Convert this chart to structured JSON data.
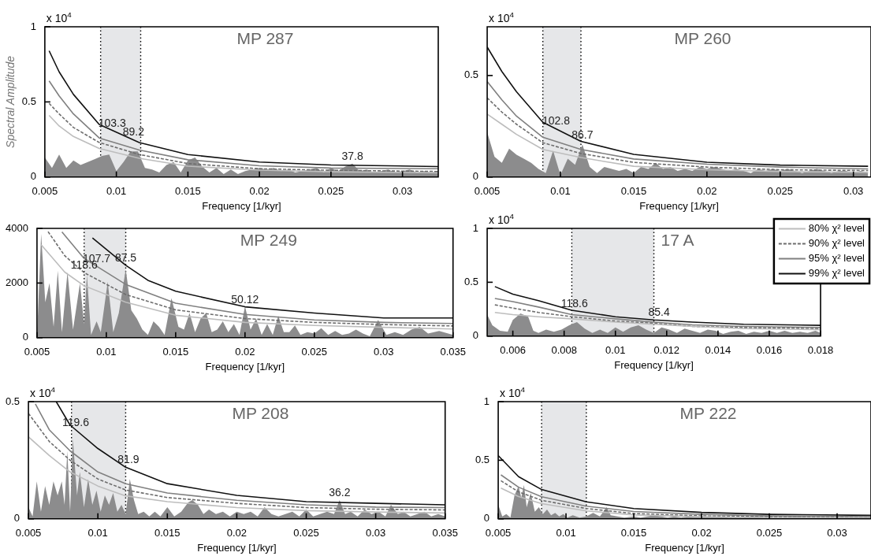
{
  "chart_data": [
    {
      "type": "line",
      "title": "MP 287",
      "xlabel": "Frequency [1/kyr]",
      "ylabel": "Spectral Amplitude",
      "annotations": [
        "x 10$^{4}$",
        {
          "text": "103.3",
          "x": 0.0097,
          "y": 0.31
        },
        {
          "text": "89.2",
          "x": 0.0112,
          "y": 0.25
        },
        {
          "text": "37.8",
          "x": 0.0265,
          "y": 0.09
        }
      ],
      "ref_lines": [
        {
          "axis": "x",
          "value": 0.0089,
          "line_style": "dotted",
          "color": "#000000"
        },
        {
          "axis": "x",
          "value": 0.0117,
          "line_style": "dotted",
          "color": "#000000"
        }
      ],
      "xlim": [
        0.005,
        0.0325
      ],
      "xticks": [
        0.005,
        0.01,
        0.015,
        0.02,
        0.025,
        0.03
      ],
      "ylim": [
        0,
        1
      ],
      "yticks": [
        0,
        0.5,
        1
      ],
      "bands": [
        {
          "axis": "x",
          "from": 0.0089,
          "to": 0.0117,
          "color": "#e6e7e9"
        }
      ],
      "series": [
        {
          "type": "area",
          "color": "#8c8c8d",
          "x": [
            0.005,
            0.0055,
            0.006,
            0.0065,
            0.007,
            0.0075,
            0.008,
            0.0085,
            0.009,
            0.0095,
            0.01,
            0.0105,
            0.011,
            0.0115,
            0.012,
            0.0125,
            0.013,
            0.0135,
            0.014,
            0.0145,
            0.015,
            0.0155,
            0.016,
            0.0165,
            0.017,
            0.0175,
            0.018,
            0.0185,
            0.019,
            0.0195,
            0.02,
            0.0205,
            0.021,
            0.0215,
            0.022,
            0.0225,
            0.023,
            0.0235,
            0.024,
            0.0245,
            0.025,
            0.0255,
            0.026,
            0.0265,
            0.027,
            0.0275,
            0.028,
            0.0285,
            0.029,
            0.0295,
            0.03,
            0.0305,
            0.031,
            0.0315,
            0.032,
            0.0325
          ],
          "values": [
            0.13,
            0.06,
            0.15,
            0.06,
            0.11,
            0.08,
            0.1,
            0.12,
            0.14,
            0.15,
            0.04,
            0.1,
            0.17,
            0.17,
            0.06,
            0.05,
            0.03,
            0.08,
            0.1,
            0.03,
            0.11,
            0.13,
            0.07,
            0.03,
            0.06,
            0.02,
            0.05,
            0.02,
            0.04,
            0.05,
            0.06,
            0.05,
            0.06,
            0.04,
            0.05,
            0.03,
            0.04,
            0.05,
            0.06,
            0.03,
            0.06,
            0.04,
            0.07,
            0.09,
            0.04,
            0.05,
            0.03,
            0.04,
            0.05,
            0.03,
            0.04,
            0.05,
            0.03,
            0.04,
            0.03,
            0.04
          ]
        },
        {
          "color": "#bdbdbd",
          "x": [
            0.0053,
            0.006,
            0.007,
            0.0088,
            0.0116,
            0.015,
            0.02,
            0.025,
            0.0325
          ],
          "values": [
            0.41,
            0.34,
            0.27,
            0.19,
            0.125,
            0.072,
            0.046,
            0.035,
            0.028
          ]
        },
        {
          "color": "#6d6d6d",
          "line_style": "dashed",
          "x": [
            0.0053,
            0.006,
            0.007,
            0.0088,
            0.0116,
            0.015,
            0.02,
            0.025,
            0.0325
          ],
          "values": [
            0.49,
            0.42,
            0.33,
            0.23,
            0.15,
            0.09,
            0.055,
            0.045,
            0.037
          ]
        },
        {
          "color": "#808080",
          "x": [
            0.0053,
            0.006,
            0.007,
            0.0088,
            0.0116,
            0.015,
            0.02,
            0.025,
            0.0325
          ],
          "values": [
            0.64,
            0.54,
            0.42,
            0.26,
            0.18,
            0.115,
            0.075,
            0.06,
            0.055
          ]
        },
        {
          "color": "#111111",
          "x": [
            0.0053,
            0.006,
            0.007,
            0.0088,
            0.0116,
            0.015,
            0.02,
            0.025,
            0.0325
          ],
          "values": [
            0.84,
            0.7,
            0.55,
            0.35,
            0.23,
            0.15,
            0.1,
            0.08,
            0.07
          ]
        }
      ]
    },
    {
      "type": "line",
      "title": "MP 260",
      "xlabel": "Frequency [1/kyr]",
      "annotations": [
        "x 10$^{4}$",
        {
          "text": "102.8",
          "x": 0.0097,
          "y": 0.24
        },
        {
          "text": "86.7",
          "x": 0.0115,
          "y": 0.17
        }
      ],
      "ref_lines": [
        {
          "axis": "x",
          "value": 0.0088,
          "line_style": "dotted",
          "color": "#000000"
        },
        {
          "axis": "x",
          "value": 0.0114,
          "line_style": "dotted",
          "color": "#000000"
        }
      ],
      "xlim": [
        0.005,
        0.0312
      ],
      "xticks": [
        0.005,
        0.01,
        0.015,
        0.02,
        0.025,
        0.03
      ],
      "ylim": [
        0,
        0.74
      ],
      "yticks": [
        0,
        0.5
      ],
      "bands": [
        {
          "axis": "x",
          "from": 0.0088,
          "to": 0.0114,
          "color": "#e6e7e9"
        }
      ],
      "series": [
        {
          "type": "area",
          "color": "#8c8c8d",
          "x": [
            0.005,
            0.0055,
            0.006,
            0.0065,
            0.007,
            0.0075,
            0.008,
            0.0085,
            0.009,
            0.0095,
            0.01,
            0.0105,
            0.011,
            0.0115,
            0.012,
            0.0125,
            0.013,
            0.0135,
            0.014,
            0.0145,
            0.015,
            0.0155,
            0.016,
            0.0165,
            0.017,
            0.0175,
            0.018,
            0.0185,
            0.019,
            0.0195,
            0.02,
            0.0205,
            0.021,
            0.0215,
            0.022,
            0.0225,
            0.023,
            0.0235,
            0.024,
            0.0245,
            0.025,
            0.0255,
            0.026,
            0.0265,
            0.027,
            0.0275,
            0.028,
            0.0285,
            0.029,
            0.0295,
            0.03,
            0.0305,
            0.031
          ],
          "values": [
            0.22,
            0.1,
            0.07,
            0.14,
            0.11,
            0.09,
            0.07,
            0.04,
            0.02,
            0.13,
            0.01,
            0.09,
            0.06,
            0.16,
            0.05,
            0.02,
            0.05,
            0.04,
            0.03,
            0.04,
            0.02,
            0.05,
            0.04,
            0.07,
            0.04,
            0.05,
            0.03,
            0.04,
            0.03,
            0.05,
            0.04,
            0.05,
            0.04,
            0.03,
            0.04,
            0.03,
            0.02,
            0.04,
            0.03,
            0.04,
            0.03,
            0.04,
            0.03,
            0.02,
            0.03,
            0.04,
            0.03,
            0.02,
            0.03,
            0.03,
            0.02,
            0.03,
            0.02
          ]
        },
        {
          "color": "#bdbdbd",
          "x": [
            0.005,
            0.006,
            0.007,
            0.0088,
            0.0114,
            0.015,
            0.02,
            0.025,
            0.031
          ],
          "values": [
            0.31,
            0.26,
            0.21,
            0.136,
            0.096,
            0.053,
            0.036,
            0.027,
            0.023
          ]
        },
        {
          "color": "#6d6d6d",
          "line_style": "dashed",
          "x": [
            0.005,
            0.006,
            0.007,
            0.0088,
            0.0114,
            0.015,
            0.02,
            0.025,
            0.031
          ],
          "values": [
            0.39,
            0.32,
            0.26,
            0.169,
            0.116,
            0.072,
            0.049,
            0.036,
            0.032
          ]
        },
        {
          "color": "#808080",
          "x": [
            0.005,
            0.006,
            0.007,
            0.0088,
            0.0114,
            0.015,
            0.02,
            0.025,
            0.031
          ],
          "values": [
            0.47,
            0.38,
            0.3,
            0.196,
            0.136,
            0.089,
            0.063,
            0.049,
            0.04
          ]
        },
        {
          "color": "#111111",
          "x": [
            0.005,
            0.006,
            0.007,
            0.0088,
            0.0114,
            0.015,
            0.02,
            0.025,
            0.031
          ],
          "values": [
            0.64,
            0.52,
            0.42,
            0.27,
            0.176,
            0.112,
            0.073,
            0.059,
            0.053
          ]
        }
      ]
    },
    {
      "type": "line",
      "title": "MP 249",
      "xlabel": "Frequency [1/kyr]",
      "annotations": [
        {
          "text": "107.7",
          "x": 0.0093,
          "y": 2620
        },
        {
          "text": "87.5",
          "x": 0.0114,
          "y": 2650
        },
        {
          "text": "118.6",
          "x": 0.0084,
          "y": 2380
        },
        {
          "text": "50.12",
          "x": 0.02,
          "y": 1130
        }
      ],
      "ref_lines": [
        {
          "axis": "x",
          "value": 0.0084,
          "line_style": "dotted",
          "color": "#000000"
        },
        {
          "axis": "x",
          "value": 0.0114,
          "line_style": "dotted",
          "color": "#000000"
        }
      ],
      "xlim": [
        0.005,
        0.035
      ],
      "xticks": [
        0.005,
        0.01,
        0.015,
        0.02,
        0.025,
        0.03,
        0.035
      ],
      "ylim": [
        0,
        4000
      ],
      "yticks": [
        0,
        2000,
        4000
      ],
      "bands": [
        {
          "axis": "x",
          "from": 0.0084,
          "to": 0.0114,
          "color": "#e6e7e9"
        }
      ],
      "series": [
        {
          "type": "area",
          "color": "#8c8c8d",
          "x": [
            0.005,
            0.0053,
            0.0056,
            0.0059,
            0.0062,
            0.0065,
            0.0068,
            0.0072,
            0.0076,
            0.0081,
            0.0084,
            0.0086,
            0.0089,
            0.0093,
            0.0096,
            0.0101,
            0.0105,
            0.0109,
            0.0114,
            0.0118,
            0.0122,
            0.0126,
            0.013,
            0.0134,
            0.0138,
            0.0142,
            0.0147,
            0.0152,
            0.0156,
            0.016,
            0.0164,
            0.0168,
            0.0172,
            0.0176,
            0.018,
            0.0184,
            0.0188,
            0.0192,
            0.0196,
            0.02,
            0.0204,
            0.0208,
            0.0212,
            0.0216,
            0.022,
            0.0224,
            0.0228,
            0.0232,
            0.0236,
            0.024,
            0.0245,
            0.025,
            0.0255,
            0.026,
            0.0265,
            0.027,
            0.0275,
            0.028,
            0.0285,
            0.029,
            0.0296,
            0.0302,
            0.0308,
            0.0314,
            0.032,
            0.0326,
            0.0332,
            0.034,
            0.035
          ],
          "values": [
            0,
            3800,
            1300,
            2000,
            400,
            2450,
            200,
            2400,
            300,
            2000,
            500,
            2300,
            100,
            600,
            200,
            2050,
            200,
            900,
            2500,
            1000,
            700,
            300,
            100,
            600,
            400,
            100,
            1450,
            400,
            300,
            900,
            200,
            700,
            900,
            200,
            300,
            600,
            200,
            500,
            100,
            1150,
            300,
            700,
            100,
            500,
            100,
            800,
            200,
            200,
            450,
            100,
            200,
            150,
            350,
            100,
            250,
            100,
            150,
            300,
            150,
            50,
            650,
            100,
            200,
            100,
            300,
            400,
            150,
            250,
            100
          ]
        },
        {
          "color": "#bdbdbd",
          "x": [
            0.0053,
            0.007,
            0.0084,
            0.0114,
            0.015,
            0.02,
            0.025,
            0.03,
            0.035
          ],
          "values": [
            3400,
            2400,
            1900,
            1300,
            820,
            560,
            450,
            380,
            320
          ]
        },
        {
          "color": "#6d6d6d",
          "line_style": "dashed",
          "x": [
            0.0058,
            0.007,
            0.0084,
            0.0114,
            0.015,
            0.02,
            0.025,
            0.03,
            0.035
          ],
          "values": [
            3880,
            3000,
            2380,
            1580,
            1020,
            700,
            560,
            480,
            430
          ]
        },
        {
          "color": "#808080",
          "x": [
            0.0068,
            0.0084,
            0.0114,
            0.015,
            0.02,
            0.025,
            0.03,
            0.035
          ],
          "values": [
            3870,
            2900,
            1950,
            1260,
            850,
            650,
            560,
            520
          ]
        },
        {
          "color": "#111111",
          "x": [
            0.009,
            0.0114,
            0.013,
            0.015,
            0.02,
            0.025,
            0.03,
            0.035
          ],
          "values": [
            3650,
            2650,
            2100,
            1700,
            1130,
            900,
            720,
            720
          ]
        }
      ]
    },
    {
      "type": "line",
      "title": "17 A",
      "xlabel": "Frequency [1/kyr]",
      "legend": "top right",
      "annotations": [
        "x 10$^{4}$",
        {
          "text": "118.6",
          "x": 0.0084,
          "y": 0.236
        },
        {
          "text": "85.4",
          "x": 0.0117,
          "y": 0.15
        }
      ],
      "ref_lines": [
        {
          "axis": "x",
          "value": 0.0083,
          "line_style": "dotted",
          "color": "#000000"
        },
        {
          "axis": "x",
          "value": 0.0115,
          "line_style": "dotted",
          "color": "#000000"
        }
      ],
      "xlim": [
        0.005,
        0.018
      ],
      "xticks": [
        0.006,
        0.008,
        0.01,
        0.012,
        0.014,
        0.016,
        0.018
      ],
      "ylim": [
        0,
        1
      ],
      "yticks": [
        0,
        0.5,
        1
      ],
      "bands": [
        {
          "axis": "x",
          "from": 0.0083,
          "to": 0.0115,
          "color": "#e6e7e9"
        }
      ],
      "series": [
        {
          "type": "area",
          "color": "#8c8c8d",
          "x": [
            0.005,
            0.0052,
            0.0055,
            0.0058,
            0.006,
            0.0063,
            0.0066,
            0.0068,
            0.007,
            0.0073,
            0.0076,
            0.0079,
            0.0082,
            0.0085,
            0.0088,
            0.0091,
            0.0094,
            0.0097,
            0.01,
            0.0103,
            0.0106,
            0.0109,
            0.0112,
            0.0115,
            0.0118,
            0.0121,
            0.0124,
            0.0127,
            0.013,
            0.0133,
            0.0136,
            0.0139,
            0.0142,
            0.0145,
            0.0148,
            0.0151,
            0.0154,
            0.0157,
            0.016,
            0.0163,
            0.0166,
            0.0169,
            0.0172,
            0.0175,
            0.0178,
            0.018
          ],
          "values": [
            0.2,
            0.1,
            0.05,
            0.04,
            0.15,
            0.21,
            0.18,
            0.05,
            0.03,
            0.06,
            0.04,
            0.06,
            0.1,
            0.13,
            0.07,
            0.03,
            0.06,
            0.03,
            0.08,
            0.04,
            0.08,
            0.1,
            0.06,
            0.03,
            0.08,
            0.06,
            0.03,
            0.07,
            0.05,
            0.03,
            0.06,
            0.05,
            0.02,
            0.04,
            0.05,
            0.02,
            0.04,
            0.03,
            0.05,
            0.03,
            0.05,
            0.03,
            0.04,
            0.03,
            0.05,
            0.03
          ]
        },
        {
          "name": "80% χ² level",
          "color": "#bdbdbd",
          "x": [
            0.0053,
            0.006,
            0.007,
            0.0083,
            0.01,
            0.0115,
            0.013,
            0.015,
            0.018
          ],
          "values": [
            0.22,
            0.2,
            0.18,
            0.16,
            0.13,
            0.11,
            0.09,
            0.07,
            0.06
          ]
        },
        {
          "name": "90% χ² level",
          "color": "#6d6d6d",
          "line_style": "dashed",
          "x": [
            0.0053,
            0.006,
            0.007,
            0.0083,
            0.01,
            0.0115,
            0.013,
            0.015,
            0.018
          ],
          "values": [
            0.29,
            0.26,
            0.22,
            0.18,
            0.14,
            0.12,
            0.09,
            0.08,
            0.07
          ]
        },
        {
          "name": "95% χ² level",
          "color": "#808080",
          "x": [
            0.0053,
            0.006,
            0.007,
            0.0083,
            0.01,
            0.0115,
            0.013,
            0.015,
            0.018
          ],
          "values": [
            0.35,
            0.32,
            0.27,
            0.2,
            0.16,
            0.13,
            0.105,
            0.09,
            0.08
          ]
        },
        {
          "name": "99% χ² level",
          "color": "#111111",
          "x": [
            0.0053,
            0.006,
            0.007,
            0.0083,
            0.01,
            0.0115,
            0.013,
            0.015,
            0.018
          ],
          "values": [
            0.46,
            0.39,
            0.33,
            0.24,
            0.18,
            0.15,
            0.13,
            0.11,
            0.1
          ]
        }
      ]
    },
    {
      "type": "line",
      "title": "MP 208",
      "xlabel": "Frequency [1/kyr]",
      "annotations": [
        "x 10$^{4}$",
        {
          "text": "119.6",
          "x": 0.0084,
          "y": 0.38
        },
        {
          "text": "81.9",
          "x": 0.0122,
          "y": 0.22
        },
        {
          "text": "36.2",
          "x": 0.0274,
          "y": 0.08
        }
      ],
      "ref_lines": [
        {
          "axis": "x",
          "value": 0.0081,
          "line_style": "dotted",
          "color": "#000000"
        },
        {
          "axis": "x",
          "value": 0.012,
          "line_style": "dotted",
          "color": "#000000"
        }
      ],
      "xlim": [
        0.005,
        0.035
      ],
      "xticks": [
        0.005,
        0.01,
        0.015,
        0.02,
        0.025,
        0.03,
        0.035
      ],
      "ylim": [
        0,
        0.5
      ],
      "yticks": [
        0,
        0.5
      ],
      "bands": [
        {
          "axis": "x",
          "from": 0.0081,
          "to": 0.012,
          "color": "#e6e7e9"
        }
      ],
      "series": [
        {
          "type": "area",
          "color": "#8c8c8d",
          "x": [
            0.005,
            0.0053,
            0.0056,
            0.0059,
            0.0062,
            0.0065,
            0.0068,
            0.0071,
            0.0074,
            0.0076,
            0.0078,
            0.008,
            0.0082,
            0.0085,
            0.0087,
            0.009,
            0.0093,
            0.0096,
            0.0099,
            0.0102,
            0.0105,
            0.0108,
            0.0111,
            0.0114,
            0.0117,
            0.012,
            0.0123,
            0.0126,
            0.0129,
            0.0133,
            0.0137,
            0.0141,
            0.0145,
            0.015,
            0.0155,
            0.016,
            0.0165,
            0.0168,
            0.0172,
            0.0176,
            0.018,
            0.0185,
            0.019,
            0.0195,
            0.02,
            0.0205,
            0.021,
            0.0215,
            0.022,
            0.0225,
            0.023,
            0.0235,
            0.024,
            0.0245,
            0.025,
            0.0255,
            0.026,
            0.0265,
            0.027,
            0.0274,
            0.0278,
            0.0282,
            0.0287,
            0.0292,
            0.0297,
            0.0302,
            0.0307,
            0.0311,
            0.0316,
            0.032,
            0.0325,
            0.033,
            0.0335,
            0.034,
            0.0345,
            0.035
          ],
          "values": [
            0.05,
            0.01,
            0.16,
            0.03,
            0.14,
            0.06,
            0.16,
            0.1,
            0.16,
            0.06,
            0.29,
            0.03,
            0.34,
            0.1,
            0.2,
            0.05,
            0.17,
            0.06,
            0.12,
            0.03,
            0.1,
            0.06,
            0.11,
            0.03,
            0.06,
            0.02,
            0.17,
            0.08,
            0.02,
            0.03,
            0.01,
            0.03,
            0.01,
            0.05,
            0.01,
            0.03,
            0.07,
            0.08,
            0.06,
            0.02,
            0.04,
            0.02,
            0.03,
            0.01,
            0.03,
            0.02,
            0.03,
            0.01,
            0.05,
            0.02,
            0.01,
            0.02,
            0.03,
            0.01,
            0.04,
            0.01,
            0.02,
            0.03,
            0.02,
            0.08,
            0.02,
            0.03,
            0.01,
            0.04,
            0.02,
            0.03,
            0.01,
            0.06,
            0.02,
            0.03,
            0.01,
            0.02,
            0.03,
            0.01,
            0.02,
            0.01
          ]
        },
        {
          "color": "#bdbdbd",
          "x": [
            0.005,
            0.0065,
            0.008,
            0.01,
            0.012,
            0.015,
            0.02,
            0.025,
            0.03,
            0.035
          ],
          "values": [
            0.35,
            0.27,
            0.2,
            0.14,
            0.098,
            0.073,
            0.048,
            0.035,
            0.029,
            0.025
          ]
        },
        {
          "color": "#6d6d6d",
          "line_style": "dashed",
          "x": [
            0.005,
            0.0065,
            0.008,
            0.01,
            0.012,
            0.015,
            0.02,
            0.025,
            0.03,
            0.035
          ],
          "values": [
            0.45,
            0.33,
            0.25,
            0.17,
            0.123,
            0.091,
            0.066,
            0.048,
            0.041,
            0.038
          ]
        },
        {
          "color": "#808080",
          "x": [
            0.0055,
            0.0065,
            0.008,
            0.01,
            0.012,
            0.015,
            0.02,
            0.025,
            0.03,
            0.035
          ],
          "values": [
            0.49,
            0.38,
            0.29,
            0.2,
            0.15,
            0.11,
            0.079,
            0.06,
            0.05,
            0.048
          ]
        },
        {
          "color": "#111111",
          "x": [
            0.007,
            0.008,
            0.01,
            0.012,
            0.015,
            0.02,
            0.025,
            0.03,
            0.035
          ],
          "values": [
            0.5,
            0.4,
            0.3,
            0.22,
            0.15,
            0.1,
            0.073,
            0.066,
            0.06
          ]
        }
      ]
    },
    {
      "type": "line",
      "title": "MP 222",
      "xlabel": "Frequency [1/kyr]",
      "annotations": [
        "x 10$^{4}$"
      ],
      "ref_lines": [
        {
          "axis": "x",
          "value": 0.0082,
          "line_style": "dotted",
          "color": "#000000"
        },
        {
          "axis": "x",
          "value": 0.0115,
          "line_style": "dotted",
          "color": "#000000"
        }
      ],
      "xlim": [
        0.005,
        0.0325
      ],
      "xticks": [
        0.005,
        0.01,
        0.015,
        0.02,
        0.025,
        0.03
      ],
      "ylim": [
        0,
        1
      ],
      "yticks": [
        0,
        0.5,
        1
      ],
      "bands": [
        {
          "axis": "x",
          "from": 0.0082,
          "to": 0.0115,
          "color": "#e6e7e9"
        }
      ],
      "series": [
        {
          "type": "area",
          "color": "#8c8c8d",
          "x": [
            0.005,
            0.0053,
            0.0056,
            0.0059,
            0.0062,
            0.0065,
            0.0067,
            0.0069,
            0.0071,
            0.0074,
            0.0077,
            0.008,
            0.0083,
            0.0086,
            0.0089,
            0.0092,
            0.0095,
            0.0098,
            0.0101,
            0.0105,
            0.011,
            0.0115,
            0.012,
            0.0125,
            0.013,
            0.0133,
            0.0138,
            0.0143,
            0.015,
            0.0155,
            0.016,
            0.0165,
            0.017,
            0.0175,
            0.018,
            0.0185,
            0.019,
            0.02,
            0.021,
            0.022,
            0.023,
            0.024,
            0.025,
            0.026,
            0.027,
            0.028,
            0.029,
            0.03,
            0.031,
            0.032,
            0.0325
          ],
          "values": [
            0.12,
            0.02,
            0.04,
            0.01,
            0.2,
            0.28,
            0.18,
            0.29,
            0.1,
            0.22,
            0.06,
            0.1,
            0.04,
            0.08,
            0.03,
            0.05,
            0.02,
            0.04,
            0.01,
            0.03,
            0.01,
            0.02,
            0.05,
            0.02,
            0.1,
            0.03,
            0.02,
            0.01,
            0.02,
            0.01,
            0.02,
            0.03,
            0.02,
            0.01,
            0.02,
            0.01,
            0.02,
            0.01,
            0.02,
            0.01,
            0.01,
            0.02,
            0.01,
            0.01,
            0.02,
            0.01,
            0.01,
            0.01,
            0.01,
            0.01,
            0.01
          ]
        },
        {
          "color": "#bdbdbd",
          "x": [
            0.0052,
            0.0065,
            0.0082,
            0.0115,
            0.015,
            0.02,
            0.025,
            0.0325
          ],
          "values": [
            0.263,
            0.19,
            0.13,
            0.068,
            0.033,
            0.018,
            0.01,
            0.008
          ]
        },
        {
          "color": "#6d6d6d",
          "line_style": "dashed",
          "x": [
            0.0052,
            0.0065,
            0.0082,
            0.0115,
            0.015,
            0.02,
            0.025,
            0.0325
          ],
          "values": [
            0.325,
            0.23,
            0.158,
            0.088,
            0.045,
            0.025,
            0.018,
            0.013
          ]
        },
        {
          "color": "#808080",
          "x": [
            0.0052,
            0.0065,
            0.0082,
            0.0115,
            0.015,
            0.02,
            0.025,
            0.0325
          ],
          "values": [
            0.375,
            0.27,
            0.188,
            0.108,
            0.063,
            0.038,
            0.025,
            0.018
          ]
        },
        {
          "color": "#111111",
          "x": [
            0.005,
            0.0065,
            0.0082,
            0.0115,
            0.015,
            0.02,
            0.025,
            0.0325
          ],
          "values": [
            0.54,
            0.36,
            0.25,
            0.145,
            0.088,
            0.055,
            0.038,
            0.03
          ]
        }
      ]
    }
  ]
}
